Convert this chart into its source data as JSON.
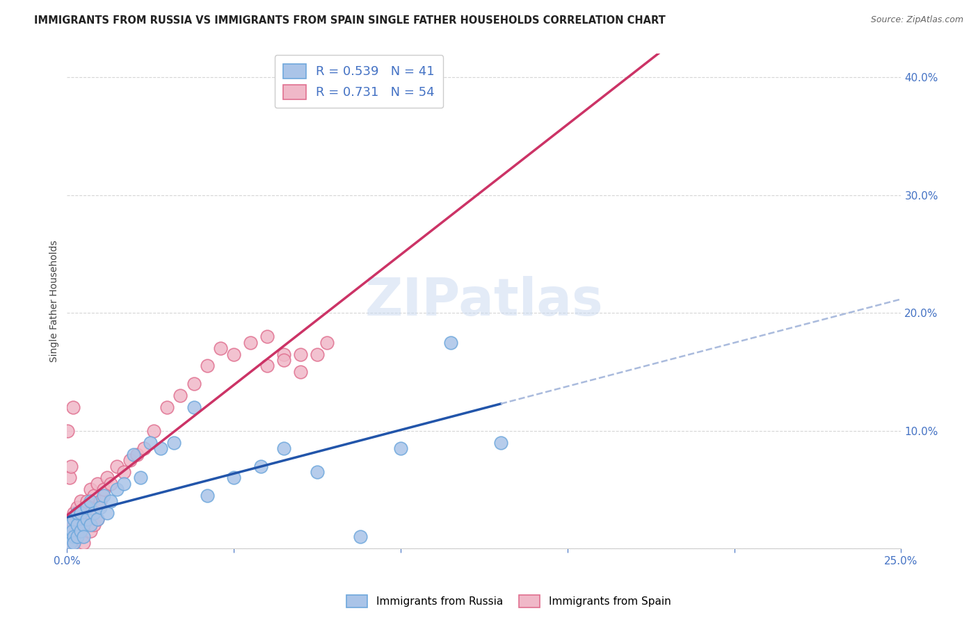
{
  "title": "IMMIGRANTS FROM RUSSIA VS IMMIGRANTS FROM SPAIN SINGLE FATHER HOUSEHOLDS CORRELATION CHART",
  "source": "Source: ZipAtlas.com",
  "tick_color": "#4472C4",
  "ylabel": "Single Father Households",
  "xlim": [
    0.0,
    0.25
  ],
  "ylim": [
    0.0,
    0.42
  ],
  "xticks": [
    0.0,
    0.05,
    0.1,
    0.15,
    0.2,
    0.25
  ],
  "yticks": [
    0.0,
    0.1,
    0.2,
    0.3,
    0.4
  ],
  "russia_color": "#6fa8dc",
  "russia_fill": "#aac4e8",
  "spain_color": "#e07090",
  "spain_fill": "#f0b8c8",
  "russia_line_color": "#2255aa",
  "spain_line_color": "#cc3366",
  "russia_dash_color": "#aabbdd",
  "russia_R": 0.539,
  "russia_N": 41,
  "spain_R": 0.731,
  "spain_N": 54,
  "watermark": "ZIPatlas",
  "russia_scatter_x": [
    0.0005,
    0.001,
    0.001,
    0.0015,
    0.002,
    0.002,
    0.002,
    0.003,
    0.003,
    0.003,
    0.004,
    0.004,
    0.005,
    0.005,
    0.006,
    0.006,
    0.007,
    0.007,
    0.008,
    0.009,
    0.01,
    0.011,
    0.012,
    0.013,
    0.015,
    0.017,
    0.02,
    0.022,
    0.025,
    0.028,
    0.032,
    0.038,
    0.042,
    0.05,
    0.058,
    0.065,
    0.075,
    0.088,
    0.1,
    0.115,
    0.13
  ],
  "russia_scatter_y": [
    0.01,
    0.02,
    0.005,
    0.015,
    0.01,
    0.025,
    0.005,
    0.02,
    0.01,
    0.03,
    0.015,
    0.03,
    0.02,
    0.01,
    0.025,
    0.035,
    0.02,
    0.04,
    0.03,
    0.025,
    0.035,
    0.045,
    0.03,
    0.04,
    0.05,
    0.055,
    0.08,
    0.06,
    0.09,
    0.085,
    0.09,
    0.12,
    0.045,
    0.06,
    0.07,
    0.085,
    0.065,
    0.01,
    0.085,
    0.175,
    0.09
  ],
  "spain_scatter_x": [
    0.0003,
    0.0005,
    0.001,
    0.001,
    0.0015,
    0.002,
    0.002,
    0.002,
    0.003,
    0.003,
    0.003,
    0.004,
    0.004,
    0.005,
    0.005,
    0.005,
    0.006,
    0.006,
    0.007,
    0.007,
    0.007,
    0.008,
    0.008,
    0.009,
    0.009,
    0.01,
    0.011,
    0.012,
    0.013,
    0.015,
    0.017,
    0.019,
    0.021,
    0.023,
    0.026,
    0.03,
    0.034,
    0.038,
    0.042,
    0.046,
    0.05,
    0.055,
    0.06,
    0.065,
    0.07,
    0.075,
    0.078,
    0.06,
    0.065,
    0.07,
    0.0002,
    0.0008,
    0.0012,
    0.0018
  ],
  "spain_scatter_y": [
    0.01,
    0.02,
    0.015,
    0.005,
    0.01,
    0.02,
    0.03,
    0.005,
    0.015,
    0.025,
    0.035,
    0.01,
    0.04,
    0.02,
    0.03,
    0.005,
    0.025,
    0.04,
    0.015,
    0.03,
    0.05,
    0.02,
    0.045,
    0.025,
    0.055,
    0.04,
    0.05,
    0.06,
    0.055,
    0.07,
    0.065,
    0.075,
    0.08,
    0.085,
    0.1,
    0.12,
    0.13,
    0.14,
    0.155,
    0.17,
    0.165,
    0.175,
    0.18,
    0.165,
    0.165,
    0.165,
    0.175,
    0.155,
    0.16,
    0.15,
    0.1,
    0.06,
    0.07,
    0.12
  ],
  "background_color": "#ffffff",
  "grid_color": "#cccccc"
}
